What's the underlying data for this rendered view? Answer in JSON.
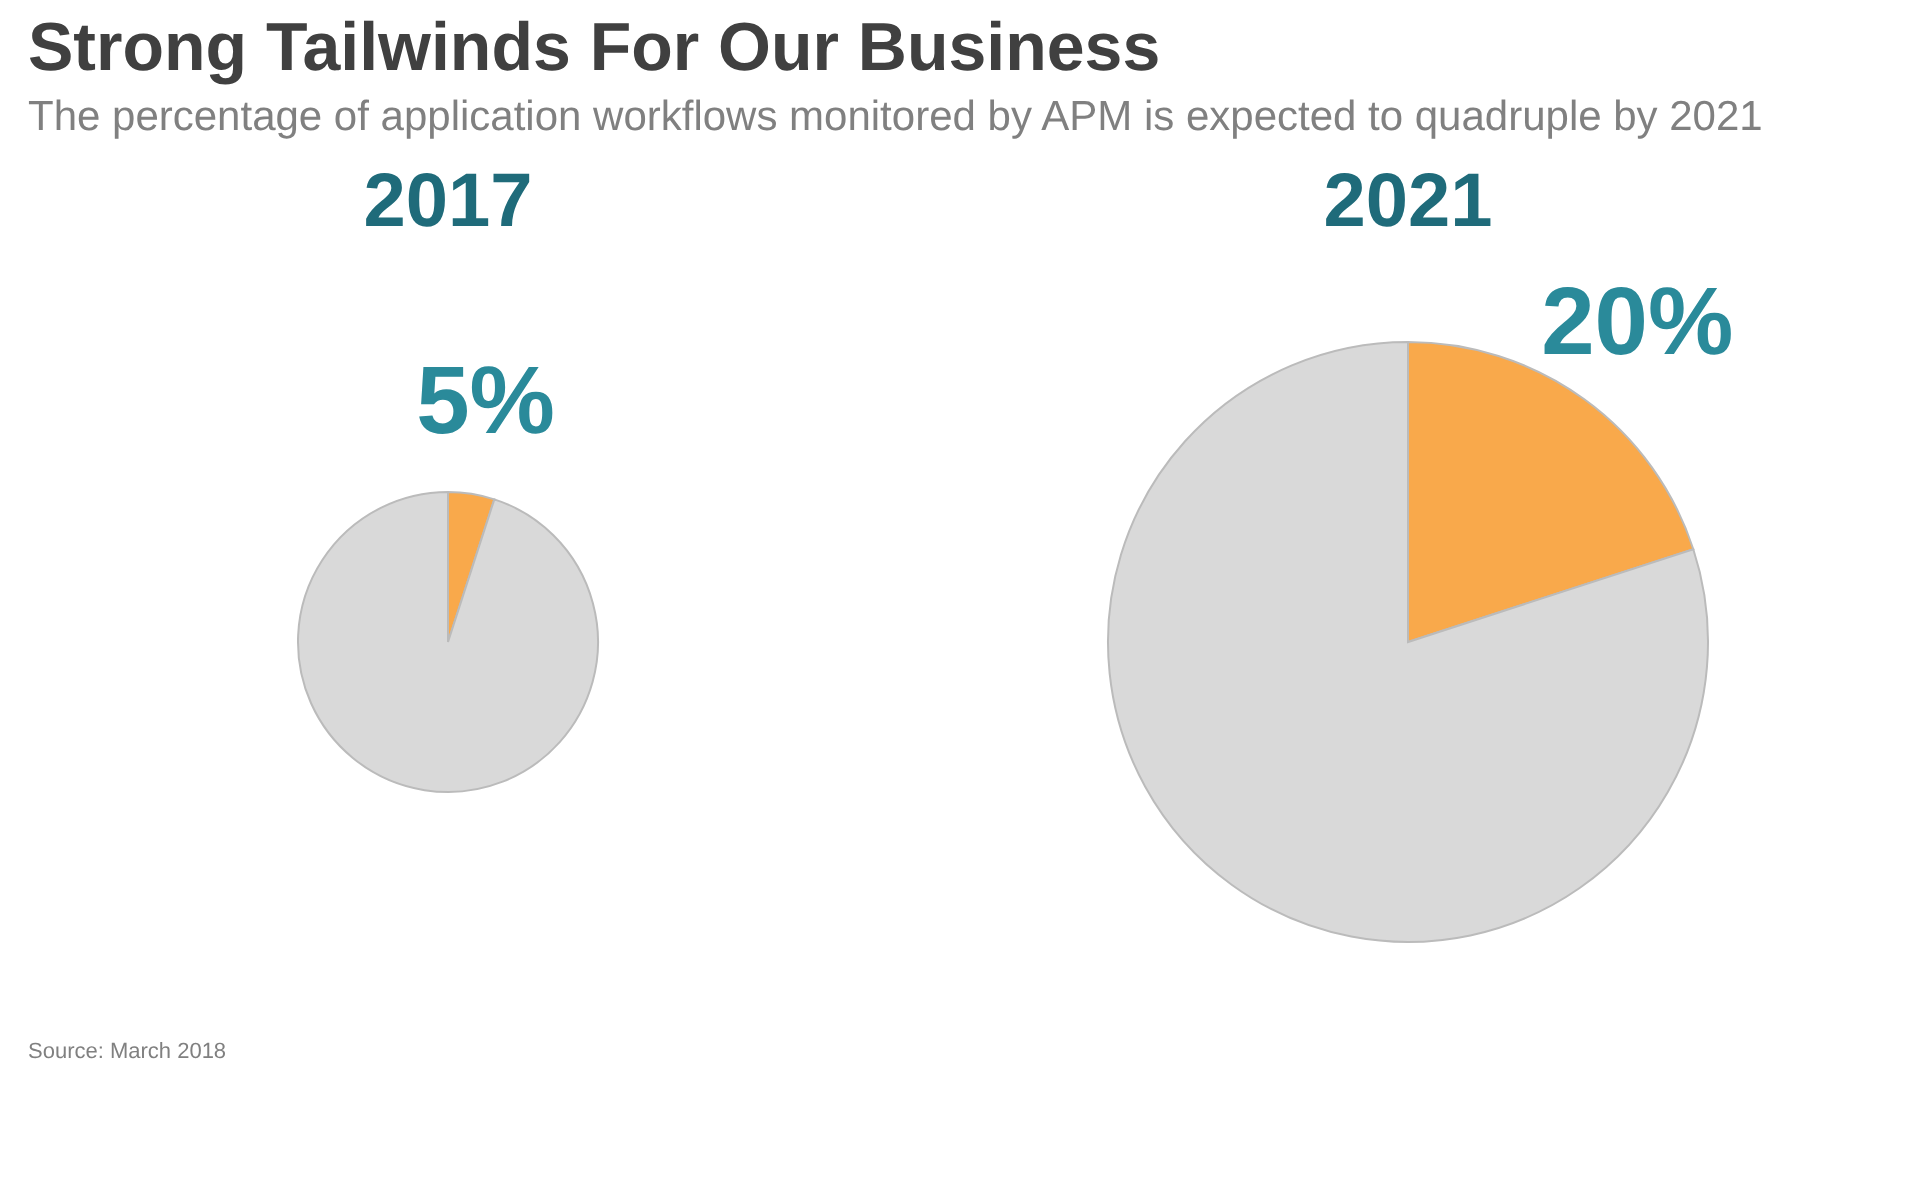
{
  "chart_data": [
    {
      "type": "other",
      "title": "Strong Tailwinds For Our Business",
      "subtitle": "The percentage of application workflows monitored by APM is expected to quadruple by 2021",
      "annotations": [
        "Source: March 2018"
      ]
    },
    {
      "type": "pie",
      "title": "2017",
      "categories": [
        null,
        null
      ],
      "values": [
        5,
        95
      ],
      "colors": [
        "#f9a94b",
        "#d9d9d9"
      ],
      "value_labels": [
        "5%",
        null
      ]
    },
    {
      "type": "pie",
      "title": "2021",
      "categories": [
        null,
        null
      ],
      "values": [
        20,
        80
      ],
      "colors": [
        "#f9a94b",
        "#d9d9d9"
      ],
      "value_labels": [
        "20%",
        null
      ]
    }
  ]
}
